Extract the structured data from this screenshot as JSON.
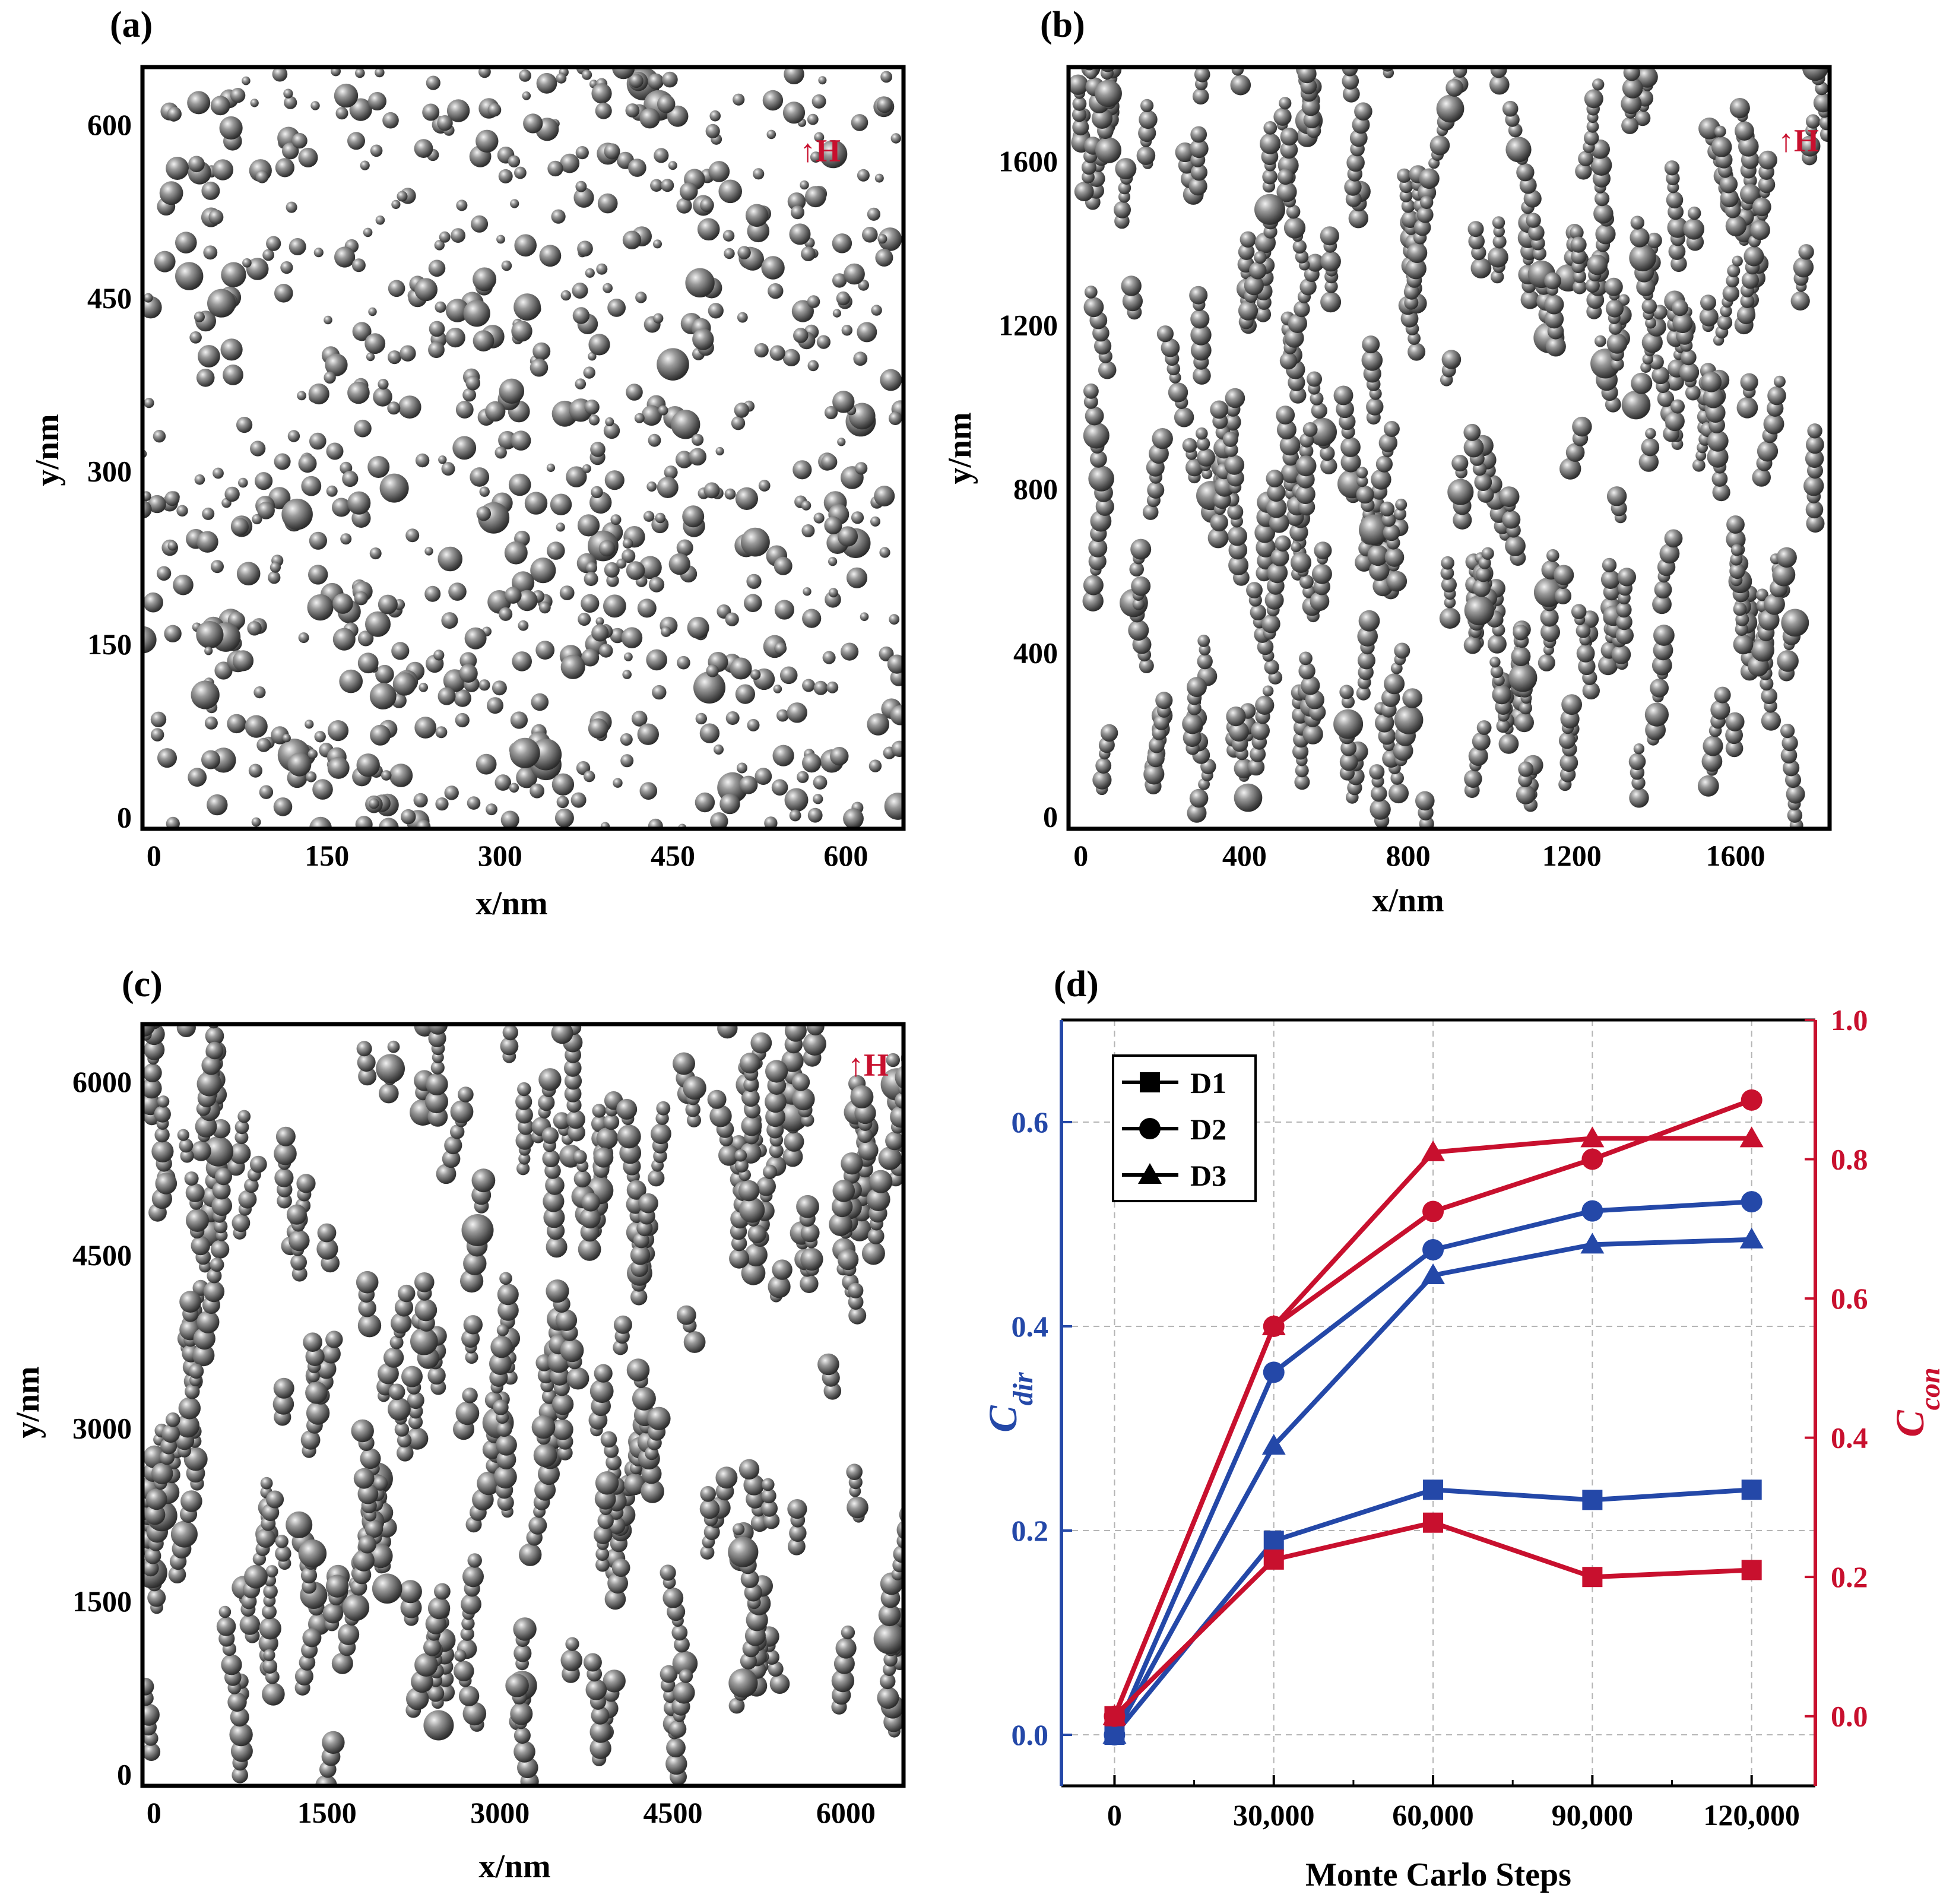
{
  "panels": {
    "a": {
      "label": "(a)",
      "xlabel": "x/nm",
      "ylabel": "y/nm",
      "xticks": [
        "0",
        "150",
        "300",
        "450",
        "600"
      ],
      "yticks": [
        "0",
        "150",
        "300",
        "450",
        "600"
      ],
      "field": "↑H"
    },
    "b": {
      "label": "(b)",
      "xlabel": "x/nm",
      "ylabel": "y/nm",
      "xticks": [
        "0",
        "400",
        "800",
        "1200",
        "1600"
      ],
      "yticks": [
        "0",
        "400",
        "800",
        "1200",
        "1600"
      ],
      "field": "↑H"
    },
    "c": {
      "label": "(c)",
      "xlabel": "x/nm",
      "ylabel": "y/nm",
      "xticks": [
        "0",
        "1500",
        "3000",
        "4500",
        "6000"
      ],
      "yticks": [
        "0",
        "1500",
        "3000",
        "4500",
        "6000"
      ],
      "field": "↑H"
    },
    "d": {
      "label": "(d)"
    }
  },
  "colors": {
    "blue": "#2448a8",
    "red": "#c8102e",
    "particle": "#555555"
  },
  "chart_data": [
    {
      "panel": "a",
      "type": "scatter",
      "xlabel": "x/nm",
      "ylabel": "y/nm",
      "xlim": [
        -10,
        650
      ],
      "ylim": [
        -10,
        650
      ],
      "xticks": [
        0,
        150,
        300,
        450,
        600
      ],
      "yticks": [
        0,
        150,
        300,
        450,
        600
      ],
      "annotation": "↑H",
      "particles": "random (isotropic) nanoparticle distribution"
    },
    {
      "panel": "b",
      "type": "scatter",
      "xlabel": "x/nm",
      "ylabel": "y/nm",
      "xlim": [
        -30,
        1830
      ],
      "ylim": [
        -30,
        1830
      ],
      "xticks": [
        0,
        400,
        800,
        1200,
        1600
      ],
      "yticks": [
        0,
        400,
        800,
        1200,
        1600
      ],
      "annotation": "↑H",
      "particles": "short chains aligned along field direction"
    },
    {
      "panel": "c",
      "type": "scatter",
      "xlabel": "x/nm",
      "ylabel": "y/nm",
      "xlim": [
        -100,
        6500
      ],
      "ylim": [
        -100,
        6500
      ],
      "xticks": [
        0,
        1500,
        3000,
        4500,
        6000
      ],
      "yticks": [
        0,
        1500,
        3000,
        4500,
        6000
      ],
      "annotation": "↑H",
      "particles": "chains aligned along field direction"
    },
    {
      "panel": "d",
      "type": "line",
      "xlabel": "Monte Carlo Steps",
      "ylabel_left": "C_dir",
      "ylabel_right": "C_con",
      "x": [
        0,
        30000,
        60000,
        90000,
        120000
      ],
      "xtick_labels": [
        "0",
        "30,000",
        "60,000",
        "90,000",
        "120,000"
      ],
      "xlim": [
        -10000,
        132000
      ],
      "ylim_left": [
        -0.05,
        0.7
      ],
      "yticks_left": [
        "0.0",
        "0.2",
        "0.4",
        "0.6"
      ],
      "ylim_right": [
        -0.1,
        1.0
      ],
      "yticks_right": [
        "0.0",
        "0.2",
        "0.4",
        "0.6",
        "0.8",
        "1.0"
      ],
      "legend": [
        {
          "name": "D1",
          "marker": "square"
        },
        {
          "name": "D2",
          "marker": "circle"
        },
        {
          "name": "D3",
          "marker": "triangle"
        }
      ],
      "legend_position": "top-left",
      "series": [
        {
          "name": "D1",
          "axis": "left",
          "color": "blue",
          "marker": "square",
          "values": [
            0.0,
            0.19,
            0.24,
            0.23,
            0.24
          ]
        },
        {
          "name": "D2",
          "axis": "left",
          "color": "blue",
          "marker": "circle",
          "values": [
            0.0,
            0.355,
            0.475,
            0.513,
            0.522
          ]
        },
        {
          "name": "D3",
          "axis": "left",
          "color": "blue",
          "marker": "triangle",
          "values": [
            0.0,
            0.283,
            0.45,
            0.48,
            0.485
          ]
        },
        {
          "name": "D1",
          "axis": "right",
          "color": "red",
          "marker": "square",
          "values": [
            0.0,
            0.225,
            0.278,
            0.2,
            0.21
          ]
        },
        {
          "name": "D2",
          "axis": "right",
          "color": "red",
          "marker": "circle",
          "values": [
            0.0,
            0.56,
            0.725,
            0.8,
            0.885
          ]
        },
        {
          "name": "D3",
          "axis": "right",
          "color": "red",
          "marker": "triangle",
          "values": [
            0.0,
            0.56,
            0.81,
            0.83,
            0.83
          ]
        }
      ]
    }
  ]
}
